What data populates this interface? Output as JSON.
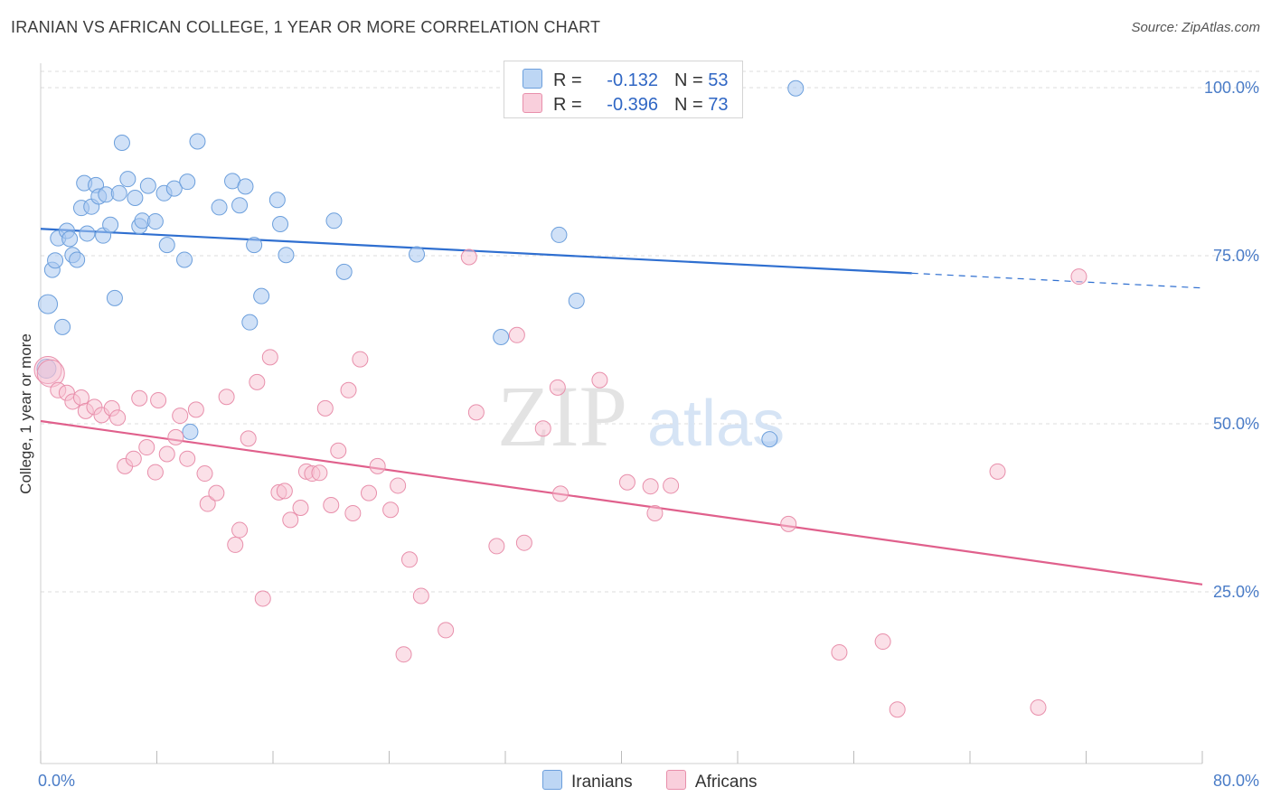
{
  "title": "IRANIAN VS AFRICAN COLLEGE, 1 YEAR OR MORE CORRELATION CHART",
  "source": "Source: ZipAtlas.com",
  "watermark": {
    "zip": "ZIP",
    "atlas": "atlas"
  },
  "legend": {
    "rows": [
      {
        "r_label": "R =",
        "r_value": "-0.132",
        "n_label": "N =",
        "n_value": "53",
        "color": "#9dc3ef"
      },
      {
        "r_label": "R =",
        "r_value": "-0.396",
        "n_label": "N =",
        "n_value": "73",
        "color": "#f6b6ca"
      }
    ]
  },
  "bottom_legend": {
    "iranians": "Iranians",
    "africans": "Africans"
  },
  "colors": {
    "iranians_fill": "#a9c9f0",
    "iranians_stroke": "#6c9fdc",
    "iranians_line": "#2f6fd0",
    "africans_fill": "#f7c2d2",
    "africans_stroke": "#e88fab",
    "africans_line": "#e0608c",
    "grid": "#dddddd",
    "axis_text": "#4a7cc7"
  },
  "chart_data": {
    "type": "scatter",
    "title": "IRANIAN VS AFRICAN COLLEGE, 1 YEAR OR MORE CORRELATION CHART",
    "xlabel": "",
    "ylabel": "College, 1 year or more",
    "xlim": [
      0,
      80
    ],
    "ylim": [
      0,
      102
    ],
    "x_tick_labels": [
      "0.0%",
      "80.0%"
    ],
    "y_ticks": [
      {
        "value": 100,
        "label": "100.0%"
      },
      {
        "value": 75,
        "label": "75.0%"
      },
      {
        "value": 50,
        "label": "50.0%"
      },
      {
        "value": 25,
        "label": "25.0%"
      }
    ],
    "series": [
      {
        "name": "Iranians",
        "r": -0.132,
        "n": 53,
        "trend": {
          "x0": 0,
          "y0": 79.0,
          "x1": 60,
          "y1": 72.4,
          "dash_x1": 80,
          "dash_y1": 70.2
        },
        "points": [
          [
            0.4,
            58.2
          ],
          [
            0.5,
            67.8
          ],
          [
            0.8,
            72.9
          ],
          [
            1.0,
            74.3
          ],
          [
            1.2,
            77.6
          ],
          [
            1.5,
            64.4
          ],
          [
            1.8,
            78.7
          ],
          [
            2.0,
            77.5
          ],
          [
            2.2,
            75.1
          ],
          [
            2.5,
            74.4
          ],
          [
            2.8,
            82.1
          ],
          [
            3.0,
            85.8
          ],
          [
            3.2,
            78.3
          ],
          [
            3.5,
            82.3
          ],
          [
            3.8,
            85.5
          ],
          [
            4.0,
            83.8
          ],
          [
            4.3,
            78.0
          ],
          [
            4.5,
            84.1
          ],
          [
            4.8,
            79.6
          ],
          [
            5.1,
            68.7
          ],
          [
            5.4,
            84.3
          ],
          [
            5.6,
            91.8
          ],
          [
            6.0,
            86.4
          ],
          [
            6.5,
            83.6
          ],
          [
            6.8,
            79.4
          ],
          [
            7.0,
            80.2
          ],
          [
            7.4,
            85.4
          ],
          [
            7.9,
            80.1
          ],
          [
            8.5,
            84.3
          ],
          [
            8.7,
            76.6
          ],
          [
            9.2,
            85.0
          ],
          [
            9.9,
            74.4
          ],
          [
            10.1,
            86.0
          ],
          [
            10.3,
            48.8
          ],
          [
            10.8,
            92.0
          ],
          [
            12.3,
            82.2
          ],
          [
            13.2,
            86.1
          ],
          [
            13.7,
            82.5
          ],
          [
            14.1,
            85.3
          ],
          [
            14.4,
            65.1
          ],
          [
            14.7,
            76.6
          ],
          [
            15.2,
            69.0
          ],
          [
            16.3,
            83.3
          ],
          [
            16.5,
            79.7
          ],
          [
            16.9,
            75.1
          ],
          [
            20.2,
            80.2
          ],
          [
            20.9,
            72.6
          ],
          [
            25.9,
            75.2
          ],
          [
            31.7,
            62.9
          ],
          [
            35.7,
            78.1
          ],
          [
            36.9,
            68.3
          ],
          [
            50.2,
            47.7
          ],
          [
            52.0,
            99.9
          ]
        ]
      },
      {
        "name": "Africans",
        "r": -0.396,
        "n": 73,
        "trend": {
          "x0": 0,
          "y0": 50.4,
          "x1": 80,
          "y1": 26.1
        },
        "points": [
          [
            0.5,
            58.0
          ],
          [
            0.7,
            57.5
          ],
          [
            1.2,
            55.0
          ],
          [
            1.8,
            54.6
          ],
          [
            2.2,
            53.3
          ],
          [
            2.8,
            53.9
          ],
          [
            3.1,
            51.9
          ],
          [
            3.7,
            52.5
          ],
          [
            4.2,
            51.3
          ],
          [
            4.9,
            52.3
          ],
          [
            5.3,
            50.9
          ],
          [
            5.8,
            43.7
          ],
          [
            6.4,
            44.8
          ],
          [
            6.8,
            53.8
          ],
          [
            7.3,
            46.5
          ],
          [
            7.9,
            42.8
          ],
          [
            8.1,
            53.5
          ],
          [
            8.7,
            45.5
          ],
          [
            9.3,
            48.0
          ],
          [
            9.6,
            51.2
          ],
          [
            10.1,
            44.8
          ],
          [
            10.7,
            52.1
          ],
          [
            11.3,
            42.6
          ],
          [
            11.5,
            38.1
          ],
          [
            12.1,
            39.7
          ],
          [
            12.8,
            54.0
          ],
          [
            13.4,
            32.0
          ],
          [
            13.7,
            34.2
          ],
          [
            14.3,
            47.8
          ],
          [
            14.9,
            56.2
          ],
          [
            15.3,
            24.0
          ],
          [
            15.8,
            59.9
          ],
          [
            16.4,
            39.8
          ],
          [
            16.8,
            40.0
          ],
          [
            17.2,
            35.7
          ],
          [
            17.9,
            37.5
          ],
          [
            18.3,
            42.9
          ],
          [
            18.7,
            42.6
          ],
          [
            19.2,
            42.7
          ],
          [
            19.6,
            52.3
          ],
          [
            20.0,
            37.9
          ],
          [
            20.5,
            46.0
          ],
          [
            21.2,
            55.0
          ],
          [
            21.5,
            36.7
          ],
          [
            22.0,
            59.6
          ],
          [
            22.6,
            39.7
          ],
          [
            23.2,
            43.7
          ],
          [
            24.1,
            37.2
          ],
          [
            24.6,
            40.8
          ],
          [
            25.0,
            15.7
          ],
          [
            25.4,
            29.8
          ],
          [
            26.2,
            24.4
          ],
          [
            27.9,
            19.3
          ],
          [
            29.5,
            74.8
          ],
          [
            30.0,
            51.7
          ],
          [
            31.4,
            31.8
          ],
          [
            32.8,
            63.2
          ],
          [
            33.3,
            32.3
          ],
          [
            34.6,
            49.3
          ],
          [
            35.6,
            55.4
          ],
          [
            35.8,
            39.6
          ],
          [
            38.5,
            56.5
          ],
          [
            40.4,
            41.3
          ],
          [
            42.0,
            40.7
          ],
          [
            42.3,
            36.7
          ],
          [
            43.4,
            40.8
          ],
          [
            51.5,
            35.1
          ],
          [
            55.0,
            16.0
          ],
          [
            58.0,
            17.6
          ],
          [
            59.0,
            7.5
          ],
          [
            65.9,
            42.9
          ],
          [
            68.7,
            7.8
          ],
          [
            71.5,
            71.9
          ]
        ]
      }
    ]
  }
}
